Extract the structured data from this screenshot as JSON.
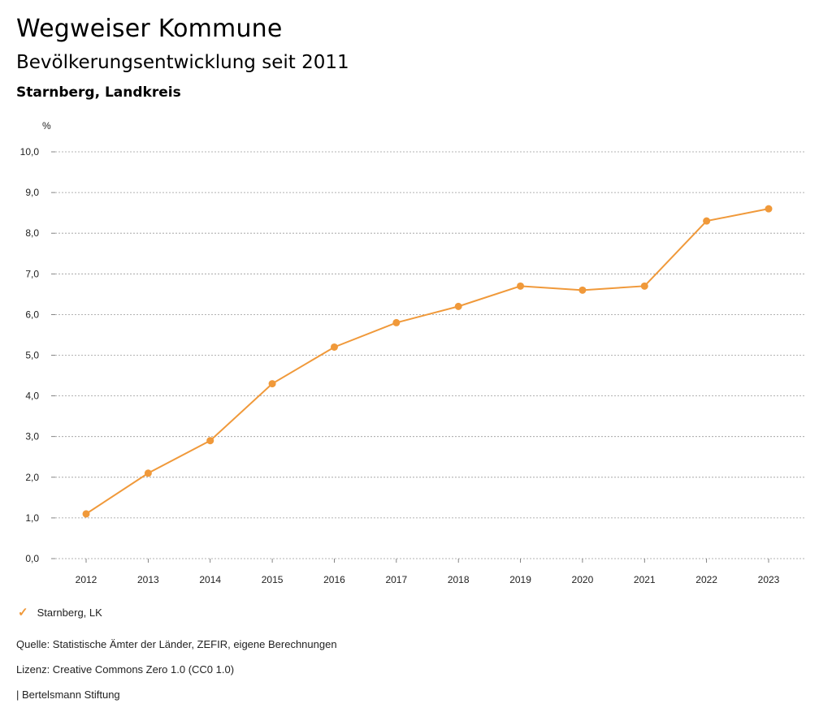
{
  "header": {
    "title": "Wegweiser Kommune",
    "subtitle": "Bevölkerungsentwicklung seit 2011",
    "region": "Starnberg, Landkreis"
  },
  "chart_data": {
    "type": "line",
    "unit_label": "%",
    "x": [
      "2012",
      "2013",
      "2014",
      "2015",
      "2016",
      "2017",
      "2018",
      "2019",
      "2020",
      "2021",
      "2022",
      "2023"
    ],
    "series": [
      {
        "name": "Starnberg, LK",
        "color": "#f0993a",
        "values": [
          1.1,
          2.1,
          2.9,
          4.3,
          5.2,
          5.8,
          6.2,
          6.7,
          6.6,
          6.7,
          8.3,
          8.6
        ]
      }
    ],
    "ylim": [
      0,
      10
    ],
    "yticks": [
      "0,0",
      "1,0",
      "2,0",
      "3,0",
      "4,0",
      "5,0",
      "6,0",
      "7,0",
      "8,0",
      "9,0",
      "10,0"
    ],
    "grid": true,
    "legend_position": "bottom-left"
  },
  "legend": {
    "label": "Starnberg, LK"
  },
  "footer": {
    "source": "Quelle: Statistische Ämter der Länder, ZEFIR, eigene Berechnungen",
    "license": "Lizenz: Creative Commons Zero 1.0 (CC0 1.0)",
    "publisher": "| Bertelsmann Stiftung"
  }
}
